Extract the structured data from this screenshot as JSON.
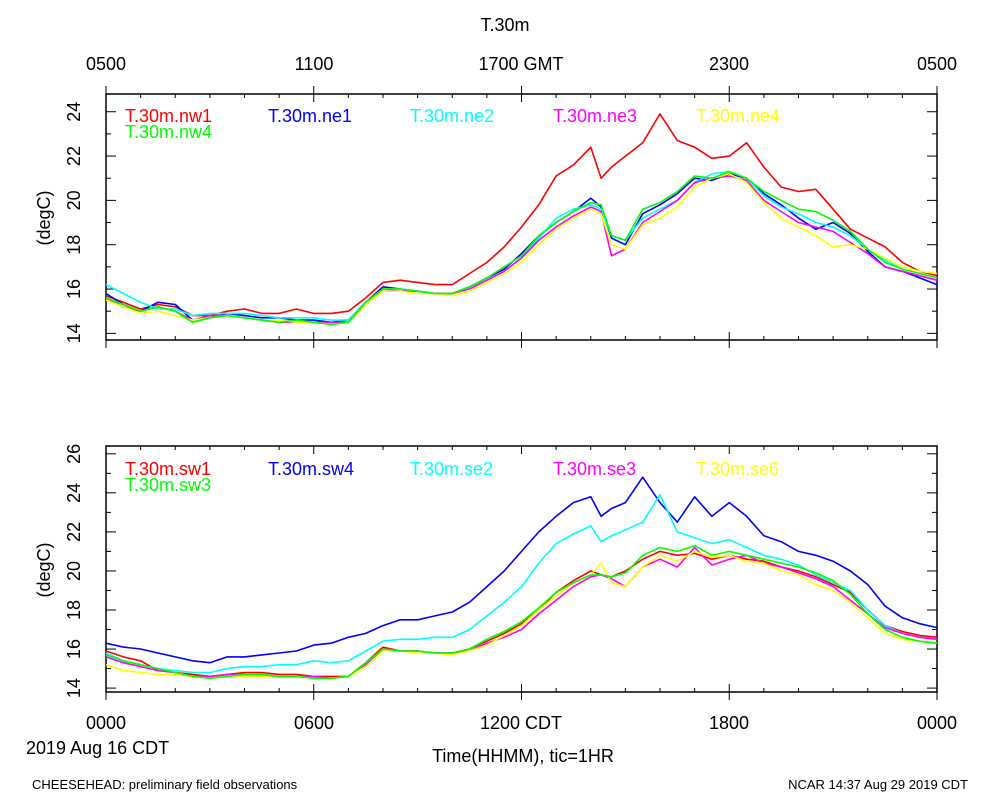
{
  "title": "T.30m",
  "top_axis": {
    "ticks": [
      "0500",
      "1100",
      "1700 GMT",
      "2300",
      "0500"
    ]
  },
  "bottom_axis": {
    "ticks": [
      "0000",
      "0600",
      "1200 CDT",
      "1800",
      "0000"
    ],
    "date_label": "2019 Aug 16 CDT",
    "label": "Time(HHMM), tic=1HR"
  },
  "footer": {
    "left": "CHEESEHEAD: preliminary field observations",
    "right": "NCAR 14:37 Aug 29 2019 CDT"
  },
  "chart_data": [
    {
      "type": "line",
      "panel": "top",
      "ylabel": "(degC)",
      "xlabel": "Time(HHMM), tic=1HR",
      "x_unit": "hours since 0000 CDT",
      "xlim": [
        0,
        24
      ],
      "ylim": [
        13.7,
        24.8
      ],
      "yticks": [
        14,
        16,
        18,
        20,
        22,
        24
      ],
      "x": [
        0,
        0.5,
        1,
        1.5,
        2,
        2.5,
        3,
        3.5,
        4,
        4.5,
        5,
        5.5,
        6,
        6.5,
        7,
        7.5,
        8,
        8.5,
        9,
        9.5,
        10,
        10.5,
        11,
        11.5,
        12,
        12.5,
        13,
        13.5,
        14,
        14.3,
        14.6,
        15,
        15.5,
        16,
        16.5,
        17,
        17.5,
        18,
        18.5,
        19,
        19.5,
        20,
        20.5,
        21,
        21.5,
        22,
        22.5,
        23,
        23.5,
        24
      ],
      "series": [
        {
          "name": "T.30m.nw1",
          "color": "#ff0000",
          "values": [
            15.7,
            15.4,
            15.1,
            15.3,
            15.2,
            14.8,
            14.8,
            15.0,
            15.1,
            14.9,
            14.9,
            15.1,
            14.9,
            14.9,
            15.0,
            15.6,
            16.3,
            16.4,
            16.3,
            16.2,
            16.2,
            16.7,
            17.2,
            17.9,
            18.8,
            19.8,
            21.1,
            21.6,
            22.4,
            21.0,
            21.5,
            22.0,
            22.6,
            23.9,
            22.7,
            22.4,
            21.9,
            22.0,
            22.6,
            21.5,
            20.6,
            20.4,
            20.5,
            19.6,
            18.7,
            18.3,
            17.9,
            17.2,
            16.8,
            16.6
          ]
        },
        {
          "name": "T.30m.ne1",
          "color": "#0000ff",
          "values": [
            15.8,
            15.3,
            15.0,
            15.4,
            15.3,
            14.6,
            14.7,
            14.9,
            14.8,
            14.7,
            14.7,
            14.6,
            14.6,
            14.5,
            14.6,
            15.4,
            16.1,
            16.0,
            15.9,
            15.8,
            15.8,
            16.1,
            16.5,
            16.9,
            17.6,
            18.4,
            19.0,
            19.5,
            20.1,
            19.7,
            18.3,
            18.0,
            19.4,
            19.8,
            20.3,
            21.0,
            20.9,
            21.2,
            21.0,
            20.3,
            19.8,
            19.2,
            18.7,
            19.0,
            18.5,
            17.7,
            17.0,
            16.8,
            16.5,
            16.2
          ]
        },
        {
          "name": "T.30m.ne2",
          "color": "#00ffff",
          "values": [
            16.2,
            15.8,
            15.4,
            15.1,
            15.1,
            14.8,
            14.9,
            14.9,
            14.9,
            14.8,
            14.7,
            14.7,
            14.7,
            14.6,
            14.6,
            15.4,
            16.0,
            16.0,
            15.9,
            15.8,
            15.8,
            16.1,
            16.4,
            16.8,
            17.4,
            18.3,
            19.2,
            19.6,
            19.8,
            19.6,
            18.4,
            18.2,
            19.2,
            19.6,
            20.0,
            20.8,
            21.2,
            21.3,
            21.0,
            20.2,
            19.7,
            19.4,
            19.0,
            18.8,
            18.4,
            17.8,
            17.3,
            16.9,
            16.7,
            16.5
          ]
        },
        {
          "name": "T.30m.ne3",
          "color": "#ff00ff",
          "values": [
            15.6,
            15.2,
            15.0,
            15.2,
            15.0,
            14.6,
            14.8,
            14.8,
            14.7,
            14.6,
            14.5,
            14.5,
            14.5,
            14.5,
            14.5,
            15.4,
            16.0,
            15.9,
            15.9,
            15.8,
            15.8,
            16.0,
            16.4,
            16.8,
            17.4,
            18.2,
            18.8,
            19.3,
            19.7,
            19.5,
            17.5,
            17.8,
            19.0,
            19.5,
            20.0,
            20.8,
            21.0,
            21.1,
            20.9,
            20.0,
            19.5,
            19.0,
            18.8,
            18.6,
            18.1,
            17.6,
            17.0,
            16.8,
            16.6,
            16.4
          ]
        },
        {
          "name": "T.30m.ne4",
          "color": "#ffff00",
          "values": [
            15.5,
            15.2,
            14.9,
            15.0,
            14.8,
            14.6,
            14.7,
            14.8,
            14.7,
            14.6,
            14.6,
            14.5,
            14.5,
            14.4,
            14.5,
            15.3,
            15.9,
            15.9,
            15.8,
            15.8,
            15.7,
            15.9,
            16.3,
            16.7,
            17.2,
            18.0,
            18.7,
            19.2,
            19.6,
            19.4,
            18.0,
            17.8,
            18.9,
            19.2,
            19.7,
            20.6,
            21.0,
            21.2,
            20.8,
            19.9,
            19.2,
            18.8,
            18.4,
            17.9,
            18.0,
            17.8,
            17.4,
            17.0,
            16.8,
            16.7
          ]
        },
        {
          "name": "T.30m.nw4",
          "color": "#00ff00",
          "values": [
            15.6,
            15.3,
            15.0,
            15.2,
            15.0,
            14.5,
            14.7,
            14.8,
            14.7,
            14.6,
            14.5,
            14.6,
            14.5,
            14.4,
            14.5,
            15.4,
            16.0,
            16.0,
            15.9,
            15.8,
            15.8,
            16.1,
            16.5,
            17.0,
            17.5,
            18.4,
            19.0,
            19.5,
            19.9,
            19.8,
            18.4,
            18.2,
            19.6,
            19.9,
            20.4,
            21.1,
            21.0,
            21.3,
            21.0,
            20.4,
            20.0,
            19.6,
            19.5,
            19.1,
            18.6,
            17.8,
            17.2,
            16.9,
            16.7,
            16.5
          ]
        }
      ]
    },
    {
      "type": "line",
      "panel": "bottom",
      "ylabel": "(degC)",
      "xlabel": "Time(HHMM), tic=1HR",
      "x_unit": "hours since 0000 CDT",
      "xlim": [
        0,
        24
      ],
      "ylim": [
        13.8,
        26.4
      ],
      "yticks": [
        14,
        16,
        18,
        20,
        22,
        24,
        26
      ],
      "x": [
        0,
        0.5,
        1,
        1.5,
        2,
        2.5,
        3,
        3.5,
        4,
        4.5,
        5,
        5.5,
        6,
        6.5,
        7,
        7.5,
        8,
        8.5,
        9,
        9.5,
        10,
        10.5,
        11,
        11.5,
        12,
        12.5,
        13,
        13.5,
        14,
        14.3,
        14.6,
        15,
        15.5,
        16,
        16.5,
        17,
        17.5,
        18,
        18.5,
        19,
        19.5,
        20,
        20.5,
        21,
        21.5,
        22,
        22.5,
        23,
        23.5,
        24
      ],
      "series": [
        {
          "name": "T.30m.sw1",
          "color": "#ff0000",
          "values": [
            15.9,
            15.6,
            15.4,
            14.9,
            14.8,
            14.7,
            14.6,
            14.7,
            14.8,
            14.8,
            14.7,
            14.7,
            14.6,
            14.6,
            14.6,
            15.3,
            16.1,
            15.9,
            15.9,
            15.8,
            15.8,
            16.0,
            16.4,
            16.8,
            17.3,
            18.0,
            18.9,
            19.5,
            20.0,
            19.8,
            19.7,
            20.0,
            20.6,
            21.0,
            20.8,
            20.9,
            20.6,
            20.8,
            20.6,
            20.5,
            20.2,
            20.0,
            19.7,
            19.3,
            18.9,
            18.0,
            17.2,
            16.9,
            16.7,
            16.6
          ]
        },
        {
          "name": "T.30m.sw4",
          "color": "#0000ff",
          "values": [
            16.3,
            16.1,
            16.0,
            15.8,
            15.6,
            15.4,
            15.3,
            15.6,
            15.6,
            15.7,
            15.8,
            15.9,
            16.2,
            16.3,
            16.6,
            16.8,
            17.2,
            17.5,
            17.5,
            17.7,
            17.9,
            18.4,
            19.2,
            20.0,
            21.0,
            22.0,
            22.8,
            23.5,
            23.8,
            22.8,
            23.2,
            23.5,
            24.8,
            23.5,
            22.5,
            23.8,
            22.8,
            23.5,
            22.8,
            21.8,
            21.5,
            21.0,
            20.8,
            20.5,
            20.0,
            19.3,
            18.2,
            17.6,
            17.3,
            17.1
          ]
        },
        {
          "name": "T.30m.se2",
          "color": "#00ffff",
          "values": [
            15.8,
            15.4,
            15.2,
            15.0,
            14.9,
            14.8,
            14.8,
            15.0,
            15.1,
            15.1,
            15.2,
            15.2,
            15.4,
            15.3,
            15.4,
            15.9,
            16.4,
            16.5,
            16.5,
            16.6,
            16.6,
            17.0,
            17.7,
            18.4,
            19.2,
            20.4,
            21.4,
            21.9,
            22.3,
            21.5,
            21.8,
            22.1,
            22.5,
            23.9,
            22.0,
            21.7,
            21.4,
            21.6,
            21.2,
            20.8,
            20.6,
            20.3,
            19.8,
            19.4,
            19.0,
            18.0,
            17.2,
            16.8,
            16.6,
            16.5
          ]
        },
        {
          "name": "T.30m.se3",
          "color": "#ff00ff",
          "values": [
            15.6,
            15.3,
            15.1,
            14.9,
            14.8,
            14.6,
            14.6,
            14.7,
            14.7,
            14.7,
            14.6,
            14.6,
            14.6,
            14.5,
            14.6,
            15.2,
            16.0,
            15.9,
            15.9,
            15.8,
            15.8,
            15.9,
            16.3,
            16.6,
            17.0,
            17.8,
            18.5,
            19.2,
            19.7,
            19.8,
            19.6,
            19.2,
            20.2,
            20.6,
            20.2,
            21.2,
            20.3,
            20.6,
            20.8,
            20.4,
            20.2,
            19.9,
            19.6,
            19.2,
            18.5,
            17.8,
            17.1,
            16.8,
            16.6,
            16.5
          ]
        },
        {
          "name": "T.30m.se6",
          "color": "#ffff00",
          "values": [
            15.2,
            14.9,
            14.8,
            14.7,
            14.7,
            14.6,
            14.5,
            14.6,
            14.6,
            14.6,
            14.6,
            14.6,
            14.5,
            14.5,
            14.6,
            15.1,
            15.9,
            15.9,
            15.8,
            15.8,
            15.7,
            15.9,
            16.2,
            16.7,
            17.2,
            18.0,
            18.7,
            19.4,
            19.8,
            20.4,
            19.4,
            19.2,
            20.2,
            20.8,
            20.5,
            21.0,
            20.7,
            20.8,
            20.5,
            20.4,
            20.0,
            19.8,
            19.3,
            19.0,
            18.4,
            17.6,
            16.8,
            16.5,
            16.4,
            16.3
          ]
        },
        {
          "name": "T.30m.sw3",
          "color": "#00ff00",
          "values": [
            15.7,
            15.4,
            15.2,
            15.0,
            14.8,
            14.6,
            14.5,
            14.6,
            14.7,
            14.7,
            14.6,
            14.6,
            14.5,
            14.5,
            14.6,
            15.3,
            16.0,
            15.9,
            15.9,
            15.8,
            15.8,
            16.0,
            16.5,
            16.9,
            17.4,
            18.1,
            18.9,
            19.4,
            19.8,
            19.8,
            19.7,
            19.9,
            20.8,
            21.2,
            21.0,
            21.3,
            20.8,
            21.0,
            20.8,
            20.6,
            20.4,
            20.2,
            19.9,
            19.5,
            18.8,
            17.8,
            17.0,
            16.6,
            16.4,
            16.3
          ]
        }
      ]
    }
  ]
}
